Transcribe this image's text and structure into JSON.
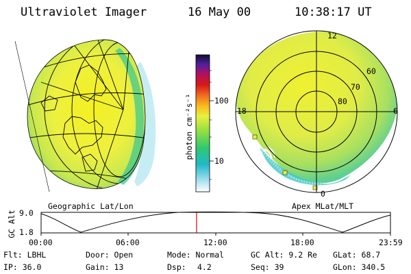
{
  "header": {
    "instrument": "Ultraviolet Imager",
    "date": "16 May 00",
    "time": "10:38:17 UT"
  },
  "colorbar": {
    "unit_label": "photon cm⁻²s⁻¹",
    "ticks": [
      "100",
      "10"
    ]
  },
  "polar_plot": {
    "mlt_labels": [
      "12",
      "18",
      "6",
      "0"
    ],
    "lat_labels": [
      "60",
      "70",
      "80"
    ]
  },
  "projection_labels": {
    "left": "Geographic Lat/Lon",
    "right": "Apex MLat/MLT"
  },
  "altitude_plot": {
    "ylabel": "GC Alt",
    "ymax": "9.0",
    "ymin": "1.8",
    "xticks": [
      "00:00",
      "06:00",
      "12:00",
      "18:00",
      "23:59"
    ],
    "marker_color": "#e00000"
  },
  "info": {
    "filter": "Flt: LBHL",
    "door": "Door: Open",
    "mode": "Mode: Normal",
    "gc_alt": "GC Alt: 9.2 Re",
    "glat": "GLat: 68.7",
    "ip": "IP: 36.0",
    "gain": "Gain: 13",
    "dsp_label": "Dsp:",
    "dsp_value": "4.2",
    "seq": "Seq: 39",
    "glon": "GLon: 340.5"
  }
}
